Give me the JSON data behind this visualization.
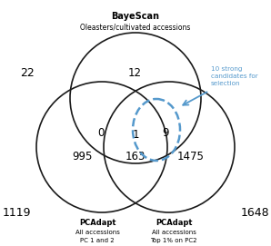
{
  "title_top": "BayeScan",
  "subtitle_top": "Oleasters/cultivated accessions",
  "num_bayescan_only": "22",
  "num_top_mid": "12",
  "num_left_only": "1119",
  "num_right_only": "1648",
  "num_left_mid": "995",
  "num_right_mid": "1475",
  "num_top_left": "0",
  "num_center": "163",
  "num_top_right": "9",
  "num_triple": "1",
  "annotation_text": "10 strong\ncandidates for\nselection",
  "circle_color": "#1a1a1a",
  "circle_lw": 1.2,
  "dashed_ellipse_color": "#5599cc",
  "annotation_color": "#5599cc",
  "bg_color": "white",
  "fig_width": 2.98,
  "fig_height": 2.71,
  "dpi": 100
}
